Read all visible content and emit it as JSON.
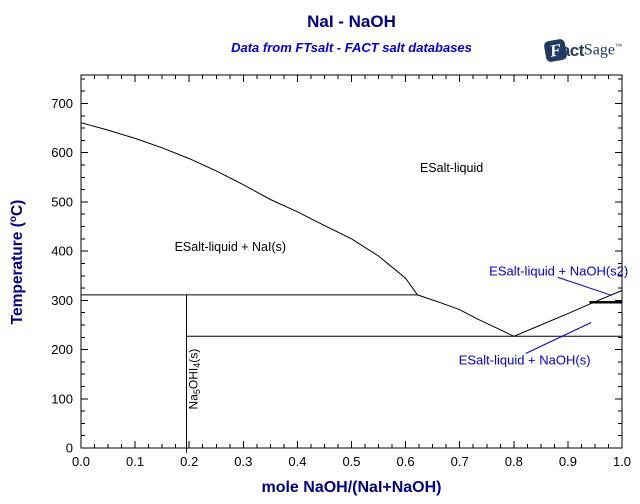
{
  "header": {
    "title": "NaI - NaOH",
    "subtitle": "Data from FTsalt - FACT salt databases"
  },
  "logo": {
    "f": "F",
    "act": "act",
    "sage": "Sage",
    "tm": "™"
  },
  "colors": {
    "navy": "#000088",
    "blue": "#0000E0",
    "black": "#000000",
    "logo_navy": "#203A64"
  },
  "chart_data": {
    "type": "line",
    "title": "NaI - NaOH",
    "subtitle": "Data from FTsalt - FACT salt databases",
    "xlabel": "mole NaOH/(NaI+NaOH)",
    "ylabel": "Temperature (°C)",
    "ylabel_parts": {
      "pre": "Temperature (",
      "sup": "o",
      "post": "C)"
    },
    "xlim": [
      0,
      1
    ],
    "ylim": [
      0,
      758
    ],
    "grid": false,
    "x_tick_values": [
      0,
      0.1,
      0.2,
      0.3,
      0.4,
      0.5,
      0.6,
      0.7,
      0.8,
      0.9,
      1.0
    ],
    "x_tick_labels": [
      "0.0",
      "0.1",
      "0.2",
      "0.3",
      "0.4",
      "0.5",
      "0.6",
      "0.7",
      "0.8",
      "0.9",
      "1.0"
    ],
    "y_tick_values": [
      0,
      100,
      200,
      300,
      400,
      500,
      600,
      700
    ],
    "y_tick_labels": [
      "0",
      "100",
      "200",
      "300",
      "400",
      "500",
      "600",
      "700"
    ],
    "x_minor_step": 0.025,
    "y_minor_step": 25,
    "boundaries": [
      {
        "name": "liquidus",
        "width": 1,
        "points": [
          [
            0,
            661
          ],
          [
            0.05,
            646
          ],
          [
            0.1,
            629
          ],
          [
            0.15,
            610
          ],
          [
            0.2,
            588
          ],
          [
            0.25,
            563
          ],
          [
            0.3,
            535
          ],
          [
            0.35,
            505
          ],
          [
            0.4,
            480
          ],
          [
            0.45,
            452
          ],
          [
            0.5,
            425
          ],
          [
            0.55,
            390
          ],
          [
            0.6,
            345
          ],
          [
            0.622,
            311
          ],
          [
            0.665,
            295
          ],
          [
            0.7,
            281
          ],
          [
            0.733,
            262
          ],
          [
            0.766,
            245
          ],
          [
            0.8,
            227
          ],
          [
            0.85,
            250
          ],
          [
            0.9,
            273
          ],
          [
            0.95,
            297
          ],
          [
            1.0,
            320
          ]
        ]
      },
      {
        "name": "peritectic-line-311",
        "width": 1,
        "points": [
          [
            0,
            311
          ],
          [
            0.622,
            311
          ]
        ]
      },
      {
        "name": "eutectic-line-227",
        "width": 1,
        "points": [
          [
            0.195,
            227
          ],
          [
            1.0,
            227
          ]
        ]
      },
      {
        "name": "na5ohi4-compound-line",
        "width": 1,
        "points": [
          [
            0.195,
            311
          ],
          [
            0.195,
            -10
          ]
        ]
      },
      {
        "name": "naoh-s2-s-transition-296",
        "width": 2.5,
        "points": [
          [
            0.94,
            296
          ],
          [
            1.0,
            296
          ]
        ]
      }
    ],
    "region_labels": [
      {
        "text": "ESalt-liquid",
        "x": 0.685,
        "t": 569,
        "color": "#000000",
        "size": 12.5
      },
      {
        "text": "ESalt-liquid + NaI(s)",
        "x": 0.276,
        "t": 408,
        "color": "#000000",
        "size": 12.5
      },
      {
        "text": "ESalt-liquid + NaOH(s2)",
        "x": 0.883,
        "t": 359,
        "color": "#0000E0",
        "size": 13
      },
      {
        "text": "ESalt-liquid + NaOH(s)",
        "x": 0.82,
        "t": 178,
        "color": "#0000E0",
        "size": 13
      }
    ],
    "compound_label": {
      "x": 0.215,
      "t": 140,
      "parts": [
        {
          "t": "Na"
        },
        {
          "t": "5",
          "sub": true
        },
        {
          "t": "OHI"
        },
        {
          "t": "4",
          "sub": true
        },
        {
          "t": "(s)"
        }
      ]
    },
    "leader_lines": [
      {
        "name": "leader-naoh-s2",
        "from": [
          0.881,
          347
        ],
        "to": [
          0.981,
          310
        ]
      },
      {
        "name": "leader-naoh-s",
        "from": [
          0.822,
          192
        ],
        "to": [
          0.943,
          255
        ]
      }
    ]
  }
}
